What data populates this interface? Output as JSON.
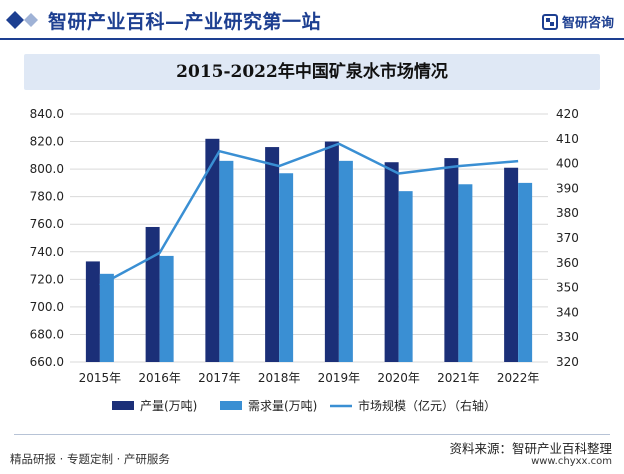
{
  "header": {
    "title": "智研产业百科—产业研究第一站",
    "brand": "智研咨询"
  },
  "footer": {
    "left_text": "精品研报 · 专题定制 · 产研服务",
    "source": "资料来源：智研产业百科整理",
    "url": "www.chyxx.com"
  },
  "colors": {
    "brand_blue": "#1d3f91",
    "bar_production": "#1b2f78",
    "bar_demand": "#3a8fd3",
    "line_market": "#3a8fd3",
    "title_bar": "#dfe8f5"
  },
  "chart_data": {
    "type": "bar",
    "title": "2015-2022年中国矿泉水市场情况",
    "categories": [
      "2015年",
      "2016年",
      "2017年",
      "2018年",
      "2019年",
      "2020年",
      "2021年",
      "2022年"
    ],
    "series": [
      {
        "name": "产量(万吨)",
        "type": "bar",
        "axis": "left",
        "values": [
          733,
          758,
          822,
          816,
          820,
          805,
          808,
          801
        ]
      },
      {
        "name": "需求量(万吨)",
        "type": "bar",
        "axis": "left",
        "values": [
          724,
          737,
          806,
          797,
          806,
          784,
          789,
          790
        ]
      },
      {
        "name": "市场规模（亿元）（右轴）",
        "type": "line",
        "axis": "right",
        "values": [
          351,
          364,
          405,
          399,
          408,
          396,
          399,
          401
        ]
      }
    ],
    "left_axis": {
      "min": 660,
      "max": 840,
      "step": 20,
      "tick_labels": [
        "660.0",
        "680.0",
        "700.0",
        "720.0",
        "740.0",
        "760.0",
        "780.0",
        "800.0",
        "820.0",
        "840.0"
      ]
    },
    "right_axis": {
      "min": 320,
      "max": 420,
      "step": 10,
      "tick_labels": [
        "320",
        "330",
        "340",
        "350",
        "360",
        "370",
        "380",
        "390",
        "400",
        "410",
        "420"
      ]
    },
    "grid": true,
    "legend_position": "bottom"
  }
}
